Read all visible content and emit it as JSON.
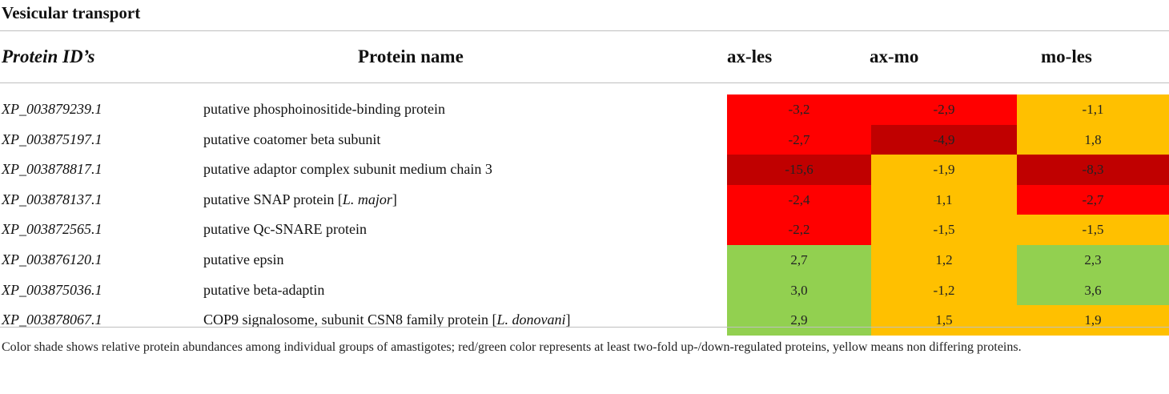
{
  "title": "Vesicular transport",
  "colors": {
    "red": "#ff0000",
    "dark_red": "#c00000",
    "yellow": "#ffc000",
    "green": "#92d050"
  },
  "headers": {
    "protein_id": "Protein ID’s",
    "protein_name": "Protein name",
    "c1": "ax-les",
    "c2": "ax-mo",
    "c3": "mo-les"
  },
  "rows": [
    {
      "id": "XP_003879239.1",
      "name": "putative phosphoinositide-binding protein",
      "name_plain": "",
      "name_italic": "",
      "name_after": "",
      "values": [
        "-3,2",
        "-2,9",
        "-1,1"
      ],
      "colors": [
        "red",
        "red",
        "yellow"
      ]
    },
    {
      "id": "XP_003875197.1",
      "name": "putative coatomer beta subunit",
      "name_plain": "",
      "name_italic": "",
      "name_after": "",
      "values": [
        "-2,7",
        "-4,9",
        "1,8"
      ],
      "colors": [
        "red",
        "dark_red",
        "yellow"
      ]
    },
    {
      "id": "XP_003878817.1",
      "name": "putative adaptor complex subunit medium chain 3",
      "name_plain": "",
      "name_italic": "",
      "name_after": "",
      "values": [
        "-15,6",
        "-1,9",
        "-8,3"
      ],
      "colors": [
        "dark_red",
        "yellow",
        "dark_red"
      ]
    },
    {
      "id": "XP_003878137.1",
      "name": "",
      "name_plain": "putative SNAP protein [",
      "name_italic": "L. major",
      "name_after": "]",
      "values": [
        "-2,4",
        "1,1",
        "-2,7"
      ],
      "colors": [
        "red",
        "yellow",
        "red"
      ]
    },
    {
      "id": "XP_003872565.1",
      "name": "putative Qc-SNARE protein",
      "name_plain": "",
      "name_italic": "",
      "name_after": "",
      "values": [
        "-2,2",
        "-1,5",
        "-1,5"
      ],
      "colors": [
        "red",
        "yellow",
        "yellow"
      ]
    },
    {
      "id": "XP_003876120.1",
      "name": "putative epsin",
      "name_plain": "",
      "name_italic": "",
      "name_after": "",
      "values": [
        "2,7",
        "1,2",
        "2,3"
      ],
      "colors": [
        "green",
        "yellow",
        "green"
      ]
    },
    {
      "id": "XP_003875036.1",
      "name": "putative beta-adaptin",
      "name_plain": "",
      "name_italic": "",
      "name_after": "",
      "values": [
        "3,0",
        "-1,2",
        "3,6"
      ],
      "colors": [
        "green",
        "yellow",
        "green"
      ]
    },
    {
      "id": "XP_003878067.1",
      "name": "",
      "name_plain": "COP9 signalosome, subunit CSN8 family protein [",
      "name_italic": "L. donovani",
      "name_after": "]",
      "values": [
        "2,9",
        "1,5",
        "1,9"
      ],
      "colors": [
        "green",
        "yellow",
        "yellow"
      ]
    }
  ],
  "footnote": "Color shade shows relative protein abundances among individual groups of amastigotes; red/green color represents at least two-fold up-/down-regulated proteins, yellow means non differing proteins."
}
